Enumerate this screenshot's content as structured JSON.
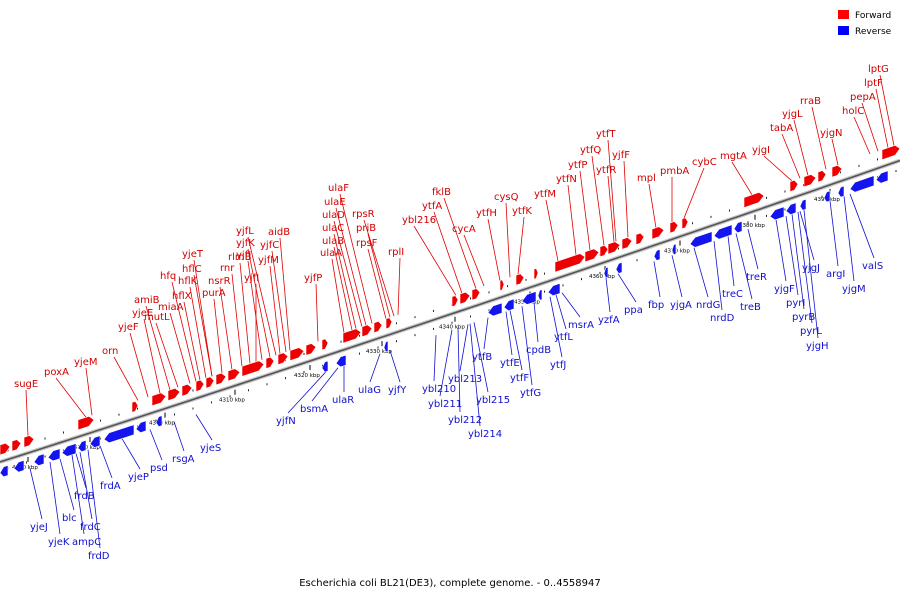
{
  "caption": "Escherichia coli BL21(DE3), complete genome. - 0..4558947",
  "legend": [
    {
      "label": "Forward",
      "color": "#ff0000"
    },
    {
      "label": "Reverse",
      "color": "#0000ff"
    }
  ],
  "axis": {
    "tick_labels": [
      "4280 kbp",
      "4290 kbp",
      "4300 kbp",
      "4310 kbp",
      "4320 kbp",
      "4330 kbp",
      "4340 kbp",
      "4350 kbp",
      "4360 kbp",
      "4370 kbp",
      "4380 kbp",
      "4390 kbp"
    ]
  },
  "forward_genes": [
    "sugE",
    "poxA",
    "yjeM",
    "orn",
    "yjeF",
    "yjeE",
    "amiB",
    "mutL",
    "miaA",
    "hfq",
    "hflX",
    "hflK",
    "hflC",
    "yjeT",
    "purA",
    "nsrR",
    "rnr",
    "rlmB",
    "yjfI",
    "yjfJ",
    "yjfK",
    "yjfL",
    "yjfM",
    "yjfC",
    "aidB",
    "yjfP",
    "ulaA",
    "ulaB",
    "ulaC",
    "ulaD",
    "ulaE",
    "ulaF",
    "rpsF",
    "priB",
    "rpsR",
    "rplI",
    "ybl216",
    "ytfA",
    "fklB",
    "cycA",
    "ytfH",
    "cysQ",
    "ytfK",
    "ytfM",
    "ytfN",
    "ytfP",
    "ytfQ",
    "ytfR",
    "ytfT",
    "yjfF",
    "mpl",
    "pmbA",
    "cybC",
    "mgtA",
    "yjgI",
    "tabA",
    "yjgL",
    "rraB",
    "yjgN",
    "holC",
    "pepA",
    "lptF",
    "lptG"
  ],
  "reverse_genes": [
    "yjeJ",
    "yjeK",
    "blc",
    "ampC",
    "frdC",
    "frdD",
    "frdB",
    "frdA",
    "yjeP",
    "psd",
    "rsgA",
    "yjeS",
    "yjfN",
    "bsmA",
    "ulaR",
    "ulaG",
    "yjfY",
    "ybl210",
    "ybl211",
    "ybl212",
    "ybl213",
    "ybl214",
    "ybl215",
    "ytfB",
    "ytfE",
    "ytfF",
    "ytfG",
    "cpdB",
    "ytfJ",
    "ytfL",
    "msrA",
    "yzfA",
    "ppa",
    "fbp",
    "yjgA",
    "nrdG",
    "nrdD",
    "treC",
    "treB",
    "treR",
    "yjgF",
    "pyrI",
    "pyrB",
    "pyrL",
    "yjgH",
    "yjgJ",
    "argI",
    "yjgM",
    "valS"
  ]
}
